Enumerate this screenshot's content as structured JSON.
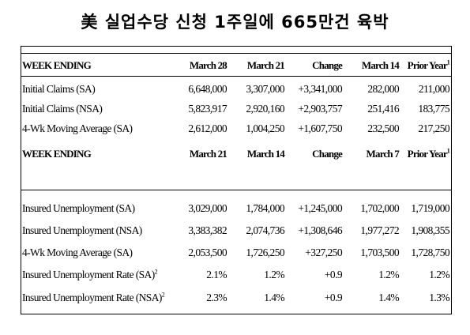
{
  "title": "美 실업수당 신청 1주일에 665만건 육박",
  "header1": {
    "label": "WEEK ENDING",
    "cols": [
      "March 28",
      "March 21",
      "Change",
      "March 14",
      "Prior Year"
    ],
    "sup": "1"
  },
  "rows1": [
    {
      "label": "Initial Claims (SA)",
      "values": [
        "6,648,000",
        "3,307,000",
        "+3,341,000",
        "282,000",
        "211,000"
      ]
    },
    {
      "label": "Initial Claims (NSA)",
      "values": [
        "5,823,917",
        "2,920,160",
        "+2,903,757",
        "251,416",
        "183,775"
      ]
    },
    {
      "label": "4-Wk Moving Average (SA)",
      "values": [
        "2,612,000",
        "1,004,250",
        "+1,607,750",
        "232,500",
        "217,250"
      ]
    }
  ],
  "header2": {
    "label": "WEEK ENDING",
    "cols": [
      "March 21",
      "March 14",
      "Change",
      "March 7",
      "Prior Year"
    ],
    "sup": "1"
  },
  "rows2": [
    {
      "label": "Insured Unemployment (SA)",
      "sup": "",
      "values": [
        "3,029,000",
        "1,784,000",
        "+1,245,000",
        "1,702,000",
        "1,719,000"
      ]
    },
    {
      "label": "Insured Unemployment (NSA)",
      "sup": "",
      "values": [
        "3,383,382",
        "2,074,736",
        "+1,308,646",
        "1,977,272",
        "1,908,355"
      ]
    },
    {
      "label": "4-Wk Moving Average (SA)",
      "sup": "",
      "values": [
        "2,053,500",
        "1,726,250",
        "+327,250",
        "1,703,500",
        "1,728,750"
      ]
    },
    {
      "label": "Insured Unemployment Rate (SA)",
      "sup": "2",
      "values": [
        "2.1%",
        "1.2%",
        "+0.9",
        "1.2%",
        "1.2%"
      ]
    },
    {
      "label": "Insured Unemployment Rate (NSA)",
      "sup": "2",
      "values": [
        "2.3%",
        "1.4%",
        "+0.9",
        "1.4%",
        "1.3%"
      ]
    }
  ]
}
